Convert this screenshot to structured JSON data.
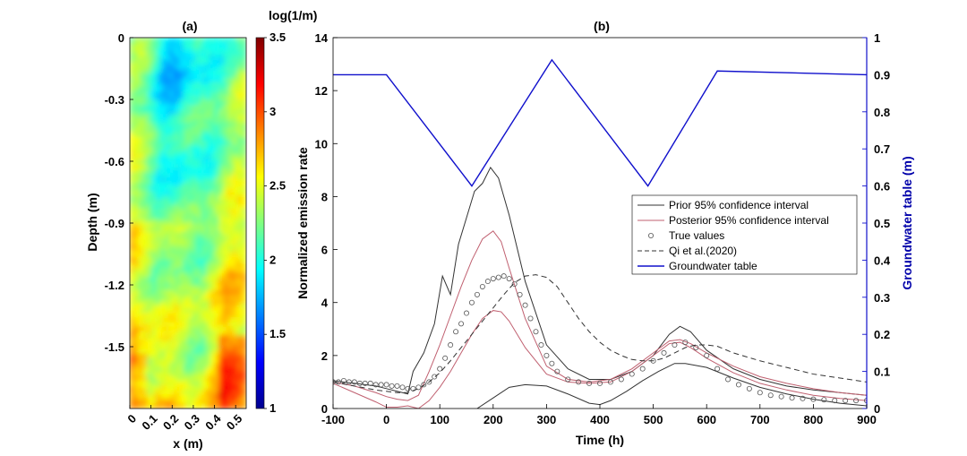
{
  "chart_data": [
    {
      "type": "heatmap",
      "panel": "(a)",
      "xlabel": "x (m)",
      "ylabel": "Depth (m)",
      "xticks": [
        "0",
        "0.1",
        "0.2",
        "0.3",
        "0.4",
        "0.5"
      ],
      "yticks": [
        "0",
        "-0.3",
        "-0.6",
        "-0.9",
        "-1.2",
        "-1.5"
      ],
      "xlim": [
        0,
        0.55
      ],
      "ylim": [
        -1.8,
        0
      ],
      "colorbar": {
        "title": "log(1/m)",
        "range": [
          1,
          3.5
        ],
        "ticks": [
          "1",
          "1.5",
          "2",
          "2.5",
          "3",
          "3.5"
        ],
        "colormap": "jet"
      }
    },
    {
      "type": "line",
      "panel": "(b)",
      "xlabel": "Time (h)",
      "ylabel": "Normalized emission rate",
      "y2label": "Groundwater table (m)",
      "xlim": [
        -100,
        900
      ],
      "ylim": [
        0,
        14
      ],
      "y2lim": [
        0,
        1
      ],
      "xticks": [
        "-100",
        "0",
        "100",
        "200",
        "300",
        "400",
        "500",
        "600",
        "700",
        "800",
        "900"
      ],
      "yticks": [
        "0",
        "2",
        "4",
        "6",
        "8",
        "10",
        "12",
        "14"
      ],
      "y2ticks": [
        "0",
        "0.1",
        "0.2",
        "0.3",
        "0.4",
        "0.5",
        "0.6",
        "0.7",
        "0.8",
        "0.9",
        "1"
      ],
      "legend_position": "center-right",
      "series": [
        {
          "name": "Prior 95% confidence interval",
          "color": "#333333",
          "bounds": {
            "upper": {
              "x": [
                -100,
                -60,
                -20,
                0,
                20,
                40,
                50,
                70,
                90,
                105,
                120,
                135,
                150,
                165,
                180,
                195,
                210,
                230,
                260,
                300,
                340,
                380,
                420,
                460,
                500,
                530,
                550,
                570,
                600,
                650,
                700,
                750,
                800,
                850,
                900
              ],
              "y": [
                1.05,
                0.95,
                0.85,
                0.75,
                0.65,
                0.55,
                1.4,
                2.1,
                3.2,
                5.0,
                4.3,
                6.2,
                7.2,
                8.2,
                8.5,
                9.1,
                8.7,
                7.3,
                4.8,
                2.4,
                1.5,
                1.1,
                1.1,
                1.4,
                2.0,
                2.8,
                3.1,
                2.9,
                2.2,
                1.5,
                1.1,
                0.85,
                0.7,
                0.6,
                0.5
              ]
            },
            "lower": {
              "x": [
                170,
                200,
                230,
                260,
                300,
                340,
                380,
                400,
                420,
                450,
                480,
                510,
                540,
                560,
                600,
                650,
                700,
                750,
                800,
                850,
                900
              ],
              "y": [
                0.0,
                0.4,
                0.8,
                0.9,
                0.85,
                0.55,
                0.2,
                0.15,
                0.3,
                0.65,
                1.05,
                1.4,
                1.7,
                1.7,
                1.55,
                1.15,
                0.8,
                0.55,
                0.35,
                0.2,
                0.1
              ]
            }
          }
        },
        {
          "name": "Posterior 95% confidence interval",
          "color": "#c06070",
          "bounds": {
            "upper": {
              "x": [
                -100,
                -60,
                -20,
                0,
                20,
                40,
                60,
                80,
                100,
                120,
                140,
                160,
                180,
                200,
                215,
                230,
                260,
                300,
                340,
                380,
                420,
                460,
                500,
                530,
                550,
                570,
                600,
                650,
                700,
                750,
                800,
                850,
                900
              ],
              "y": [
                1.0,
                0.85,
                0.6,
                0.45,
                0.35,
                0.3,
                0.5,
                1.4,
                2.4,
                3.5,
                4.6,
                5.6,
                6.4,
                6.7,
                6.3,
                5.3,
                3.4,
                1.6,
                1.1,
                1.0,
                1.1,
                1.5,
                2.1,
                2.55,
                2.6,
                2.45,
                2.1,
                1.6,
                1.2,
                0.95,
                0.75,
                0.6,
                0.5
              ]
            },
            "lower": {
              "x": [
                -100,
                -60,
                -20,
                0,
                20,
                40,
                60,
                80,
                100,
                120,
                140,
                160,
                180,
                200,
                215,
                230,
                260,
                300,
                340,
                380,
                420,
                460,
                500,
                530,
                550,
                570,
                600,
                650,
                700,
                750,
                800,
                850,
                900
              ],
              "y": [
                0.95,
                0.6,
                0.25,
                0.05,
                0.05,
                0.1,
                0.0,
                0.3,
                0.8,
                1.4,
                2.1,
                2.8,
                3.4,
                3.7,
                3.65,
                3.3,
                2.3,
                1.3,
                1.0,
                0.95,
                1.0,
                1.4,
                2.0,
                2.45,
                2.5,
                2.3,
                1.9,
                1.35,
                0.95,
                0.7,
                0.5,
                0.38,
                0.3
              ]
            }
          }
        },
        {
          "name": "True values",
          "style": "markers",
          "color": "#555555",
          "x": [
            -100,
            -90,
            -80,
            -70,
            -60,
            -50,
            -40,
            -30,
            -20,
            -10,
            0,
            10,
            20,
            30,
            40,
            50,
            60,
            70,
            80,
            90,
            100,
            110,
            120,
            130,
            140,
            150,
            160,
            170,
            180,
            190,
            200,
            210,
            220,
            230,
            240,
            250,
            260,
            270,
            280,
            290,
            300,
            310,
            320,
            340,
            360,
            380,
            400,
            420,
            440,
            460,
            480,
            500,
            520,
            540,
            560,
            580,
            600,
            620,
            640,
            660,
            680,
            700,
            720,
            740,
            760,
            780,
            800,
            820,
            840,
            860,
            880,
            900
          ],
          "y": [
            1.0,
            1.0,
            1.05,
            1.0,
            1.0,
            0.95,
            0.95,
            0.95,
            0.9,
            0.9,
            0.9,
            0.85,
            0.85,
            0.8,
            0.75,
            0.75,
            0.8,
            0.9,
            1.0,
            1.2,
            1.5,
            1.9,
            2.4,
            2.9,
            3.2,
            3.6,
            4.0,
            4.3,
            4.6,
            4.8,
            4.9,
            4.95,
            5.0,
            4.9,
            4.7,
            4.3,
            3.9,
            3.4,
            2.9,
            2.4,
            2.0,
            1.7,
            1.4,
            1.1,
            1.0,
            0.95,
            0.95,
            1.0,
            1.1,
            1.3,
            1.5,
            1.8,
            2.1,
            2.4,
            2.5,
            2.3,
            2.0,
            1.5,
            1.1,
            0.9,
            0.75,
            0.6,
            0.5,
            0.45,
            0.4,
            0.38,
            0.35,
            0.33,
            0.3,
            0.3,
            0.3,
            0.3
          ]
        },
        {
          "name": "Qi et al.(2020)",
          "style": "dashed",
          "color": "#333333",
          "x": [
            -100,
            -60,
            -20,
            0,
            20,
            40,
            60,
            80,
            100,
            120,
            140,
            160,
            180,
            200,
            220,
            240,
            260,
            280,
            300,
            320,
            340,
            360,
            380,
            400,
            420,
            440,
            460,
            480,
            500,
            520,
            540,
            560,
            580,
            600,
            620,
            650,
            700,
            750,
            800,
            850,
            900
          ],
          "y": [
            1.0,
            0.85,
            0.7,
            0.65,
            0.6,
            0.6,
            0.75,
            1.0,
            1.35,
            1.8,
            2.3,
            2.8,
            3.3,
            3.8,
            4.3,
            4.75,
            5.0,
            5.05,
            4.95,
            4.6,
            4.0,
            3.4,
            2.9,
            2.5,
            2.2,
            2.0,
            1.85,
            1.8,
            1.8,
            1.9,
            2.1,
            2.3,
            2.4,
            2.4,
            2.35,
            2.1,
            1.8,
            1.55,
            1.3,
            1.15,
            1.0
          ]
        },
        {
          "name": "Groundwater table",
          "axis": "right",
          "color": "#1010cc",
          "x": [
            -100,
            0,
            160,
            310,
            490,
            620,
            900
          ],
          "y": [
            0.9,
            0.9,
            0.6,
            0.94,
            0.6,
            0.91,
            0.9
          ]
        }
      ]
    }
  ]
}
